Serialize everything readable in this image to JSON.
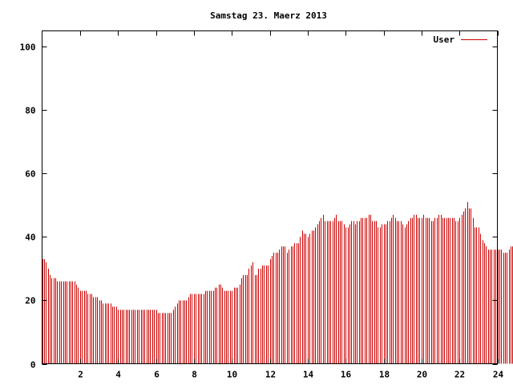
{
  "chart_data": {
    "type": "bar",
    "title": "Samstag 23. Maerz 2013",
    "xlabel": "",
    "ylabel": "",
    "xlim": [
      0,
      24
    ],
    "ylim": [
      0,
      105
    ],
    "xticks": [
      2,
      4,
      6,
      8,
      10,
      12,
      14,
      16,
      18,
      20,
      22,
      24
    ],
    "yticks": [
      0,
      20,
      40,
      60,
      80,
      100
    ],
    "grid": false,
    "legend_position": "top-right",
    "series": [
      {
        "name": "User",
        "color": "#cc0000",
        "x_start": 0,
        "x_step": 0.1,
        "values": [
          33,
          33,
          32,
          30,
          28,
          27,
          27,
          27,
          26,
          26,
          26,
          26,
          26,
          26,
          26,
          26,
          26,
          26,
          25,
          24,
          23,
          23,
          23,
          23,
          22,
          22,
          22,
          21,
          21,
          21,
          20,
          20,
          19,
          19,
          19,
          19,
          19,
          18,
          18,
          18,
          17,
          17,
          17,
          17,
          17,
          17,
          17,
          17,
          17,
          17,
          17,
          17,
          17,
          17,
          17,
          17,
          17,
          17,
          17,
          17,
          17,
          16,
          16,
          16,
          16,
          16,
          16,
          16,
          16,
          17,
          18,
          19,
          20,
          20,
          20,
          20,
          20,
          21,
          22,
          22,
          22,
          22,
          22,
          22,
          22,
          22,
          23,
          23,
          23,
          23,
          23,
          24,
          24,
          25,
          25,
          24,
          23,
          23,
          23,
          23,
          23,
          24,
          24,
          24,
          25,
          27,
          28,
          28,
          28,
          30,
          31,
          32,
          28,
          28,
          30,
          30,
          31,
          31,
          31,
          31,
          33,
          34,
          35,
          35,
          35,
          36,
          37,
          37,
          37,
          35,
          36,
          37,
          37,
          38,
          38,
          38,
          40,
          42,
          41,
          41,
          40,
          41,
          42,
          42,
          43,
          44,
          45,
          46,
          47,
          45,
          45,
          45,
          45,
          45,
          46,
          47,
          45,
          45,
          45,
          44,
          43,
          43,
          44,
          45,
          45,
          44,
          45,
          45,
          46,
          46,
          46,
          46,
          47,
          47,
          45,
          45,
          45,
          43,
          43,
          44,
          44,
          44,
          45,
          45,
          46,
          47,
          46,
          45,
          45,
          45,
          44,
          43,
          44,
          45,
          46,
          46,
          47,
          47,
          46,
          46,
          46,
          47,
          46,
          46,
          46,
          45,
          45,
          46,
          46,
          47,
          47,
          46,
          46,
          46,
          46,
          46,
          46,
          46,
          45,
          45,
          46,
          47,
          48,
          49,
          51,
          49,
          49,
          46,
          43,
          43,
          43,
          41,
          39,
          38,
          37,
          36,
          36,
          36,
          36,
          36,
          36,
          36,
          36,
          35,
          35,
          35,
          36,
          37,
          37,
          37
        ]
      }
    ]
  }
}
